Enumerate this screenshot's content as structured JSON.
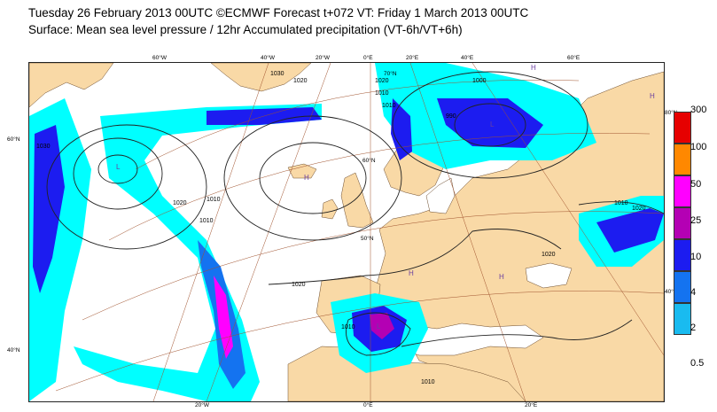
{
  "header": {
    "line1": "Tuesday 26 February 2013 00UTC ©ECMWF Forecast t+072 VT: Friday 1 March 2013 00UTC",
    "line2": "Surface: Mean sea level pressure / 12hr Accumulated precipitation (VT-6h/VT+6h)"
  },
  "colors": {
    "land": "#f9d9a6",
    "sea": "#ffffff",
    "isobar": "#222222",
    "graticule": "#a0522d"
  },
  "map": {
    "lon_labels_top": [
      "60°W",
      "40°W",
      "20°W",
      "0°E",
      "20°E",
      "40°E",
      "60°E"
    ],
    "lon_labels_bottom": [
      "20°W",
      "0°E",
      "20°E"
    ],
    "lat_labels_left": [
      "60°N",
      "40°N"
    ],
    "lat_labels_right": [
      "80°N",
      "40°N"
    ],
    "lat_labels_inner": [
      "70°N",
      "60°N",
      "50°N"
    ],
    "isobar_labels": [
      "1030",
      "1020",
      "1020",
      "1010",
      "1000",
      "990",
      "1030",
      "1020",
      "1010",
      "1010",
      "1020",
      "1010",
      "1010",
      "1020",
      "1020",
      "1010",
      "1010"
    ],
    "pressure_centres": [
      "H",
      "H",
      "H",
      "H",
      "H",
      "L",
      "L",
      "L"
    ]
  },
  "legend": {
    "title": "12hr Accumulated precipitation",
    "levels": [
      "300",
      "100",
      "50",
      "25",
      "10",
      "4",
      "2",
      "0.5"
    ],
    "colors": [
      "#e60000",
      "#ff8800",
      "#ff00ff",
      "#b400b4",
      "#1c1cf0",
      "#1473f0",
      "#19bbf0",
      "#00ffff"
    ]
  }
}
